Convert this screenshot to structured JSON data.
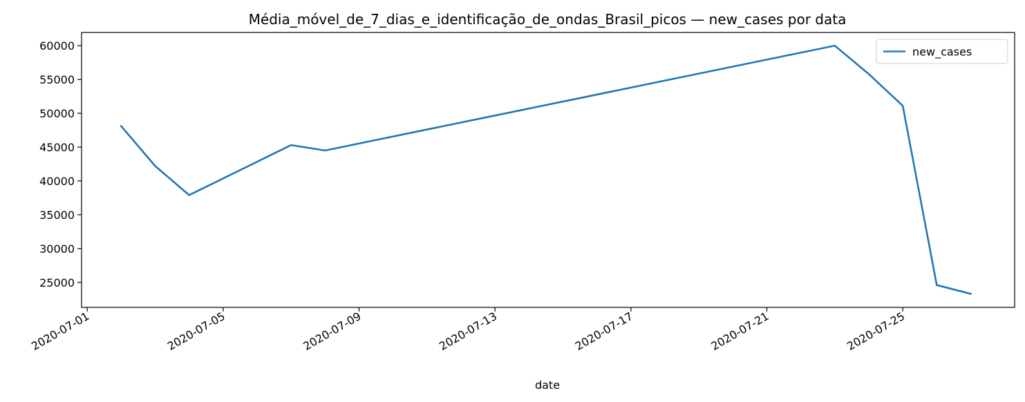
{
  "chart_data": {
    "type": "line",
    "title": "Média_móvel_de_7_dias_e_identificação_de_ondas_Brasil_picos — new_cases por data",
    "xlabel": "date",
    "ylabel": "",
    "x": [
      "2020-07-02",
      "2020-07-03",
      "2020-07-04",
      "2020-07-07",
      "2020-07-08",
      "2020-07-23",
      "2020-07-24",
      "2020-07-25",
      "2020-07-26",
      "2020-07-27"
    ],
    "series": [
      {
        "name": "new_cases",
        "values": [
          48100,
          42200,
          37900,
          45300,
          44500,
          60000,
          55800,
          51100,
          24600,
          23300
        ]
      }
    ],
    "xlim": [
      "2020-06-30T20:00",
      "2020-07-28T07:00"
    ],
    "ylim": [
      21300,
      61950
    ],
    "x_ticks": [
      "2020-07-01",
      "2020-07-05",
      "2020-07-09",
      "2020-07-13",
      "2020-07-17",
      "2020-07-21",
      "2020-07-25"
    ],
    "y_ticks": [
      25000,
      30000,
      35000,
      40000,
      45000,
      50000,
      55000,
      60000
    ],
    "legend_position": "top-right",
    "grid": false,
    "colors": {
      "line": "#1f77b4"
    }
  }
}
